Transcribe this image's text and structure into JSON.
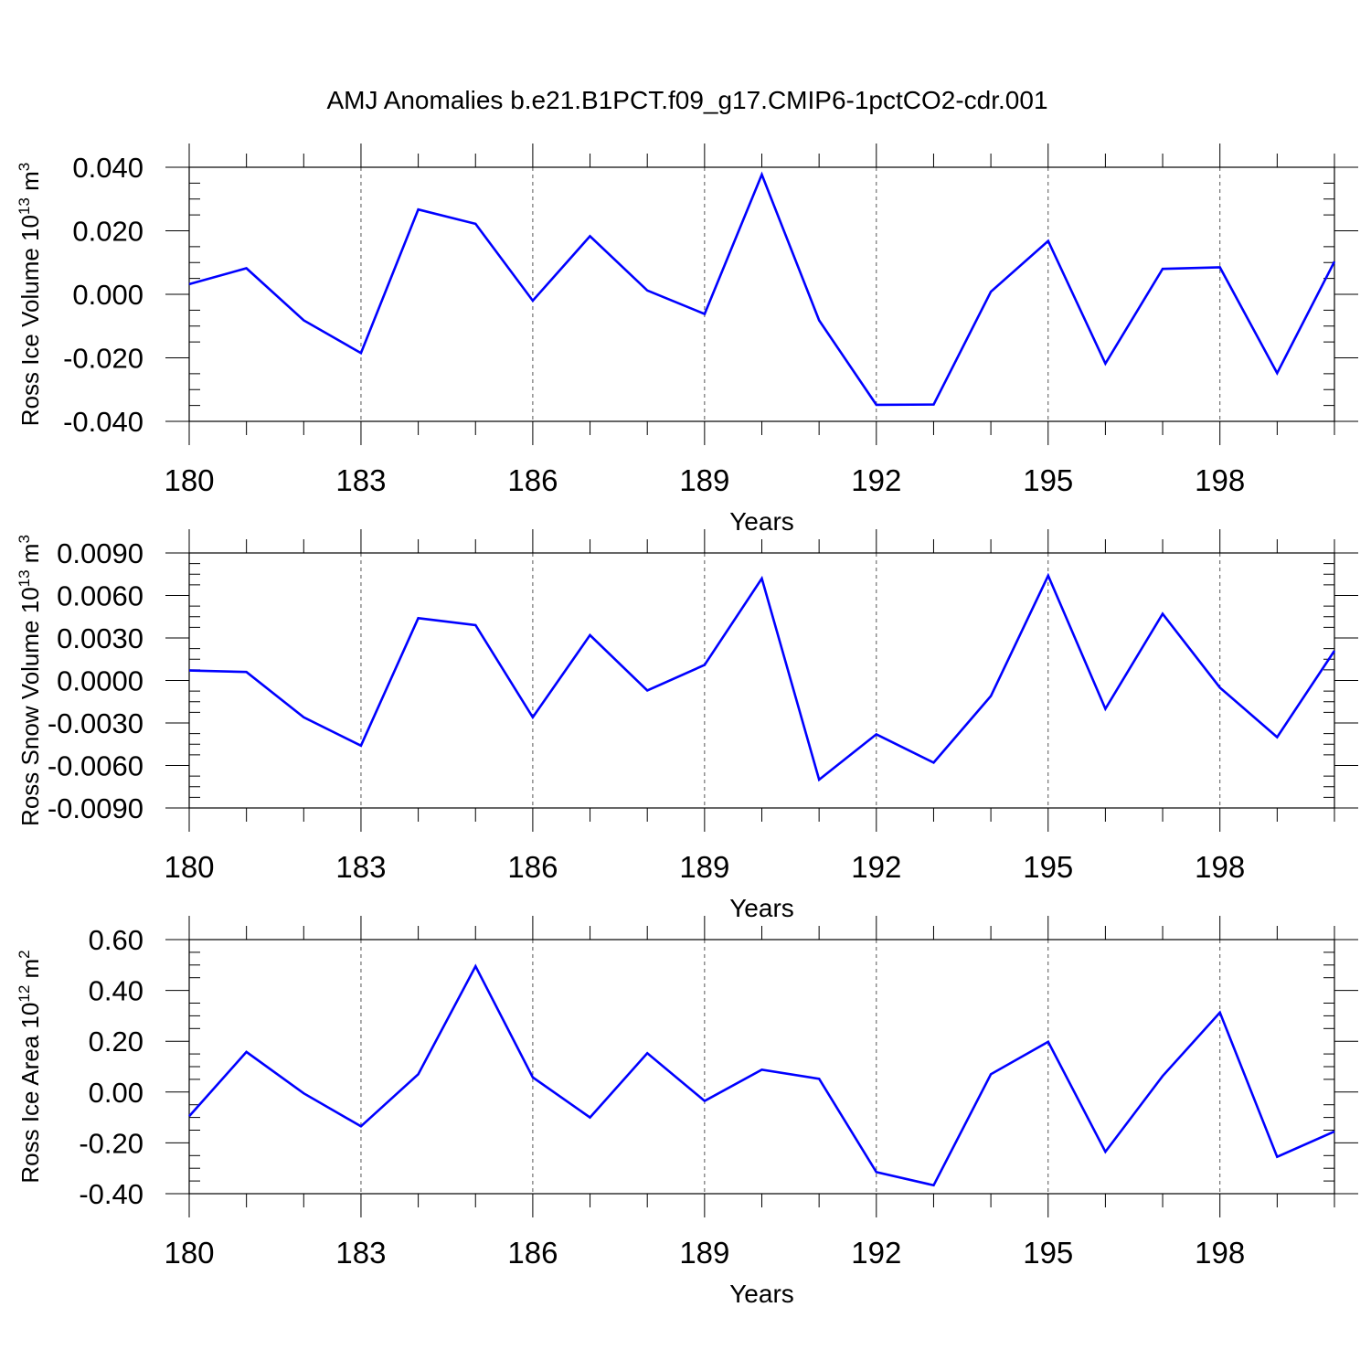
{
  "title": "AMJ Anomalies b.e21.B1PCT.f09_g17.CMIP6-1pctCO2-cdr.001",
  "line_color": "#0000ff",
  "chart_data": [
    {
      "type": "line",
      "xlabel": "Years",
      "ylabel": {
        "base": "Ross Ice Volume 10",
        "exp": "13",
        "unit": " m",
        "unit_exp": "3"
      },
      "xlim": [
        180,
        200
      ],
      "ylim": [
        -0.04,
        0.04
      ],
      "x_ticks": [
        180,
        183,
        186,
        189,
        192,
        195,
        198
      ],
      "y_ticks": [
        -0.04,
        -0.02,
        0.0,
        0.02,
        0.04
      ],
      "y_tick_labels": [
        "-0.040",
        "-0.020",
        "0.000",
        "0.020",
        "0.040"
      ],
      "grid": "dashed vertical lines at labelled years",
      "x": [
        180,
        181,
        182,
        183,
        184,
        185,
        186,
        187,
        188,
        189,
        190,
        191,
        192,
        193,
        194,
        195,
        196,
        197,
        198,
        199,
        200
      ],
      "values": [
        0.0032,
        0.0082,
        -0.0082,
        -0.0185,
        0.0267,
        0.0222,
        -0.002,
        0.0183,
        0.0012,
        -0.0062,
        0.0377,
        -0.0082,
        -0.0348,
        -0.0347,
        0.0008,
        0.0168,
        -0.0218,
        0.008,
        0.0085,
        -0.0248,
        0.0103
      ]
    },
    {
      "type": "line",
      "xlabel": "Years",
      "ylabel": {
        "base": "Ross Snow Volume 10",
        "exp": "13",
        "unit": " m",
        "unit_exp": "3"
      },
      "xlim": [
        180,
        200
      ],
      "ylim": [
        -0.009,
        0.009
      ],
      "x_ticks": [
        180,
        183,
        186,
        189,
        192,
        195,
        198
      ],
      "y_ticks": [
        -0.009,
        -0.006,
        -0.003,
        0.0,
        0.003,
        0.006,
        0.009
      ],
      "y_tick_labels": [
        "-0.0090",
        "-0.0060",
        "-0.0030",
        "0.0000",
        "0.0030",
        "0.0060",
        "0.0090"
      ],
      "grid": "dashed vertical lines at labelled years",
      "x": [
        180,
        181,
        182,
        183,
        184,
        185,
        186,
        187,
        188,
        189,
        190,
        191,
        192,
        193,
        194,
        195,
        196,
        197,
        198,
        199,
        200
      ],
      "values": [
        0.0007,
        0.0006,
        -0.0026,
        -0.0046,
        0.0044,
        0.0039,
        -0.0026,
        0.0032,
        -0.0007,
        0.0011,
        0.0072,
        -0.007,
        -0.0038,
        -0.0058,
        -0.0011,
        0.0074,
        -0.002,
        0.0047,
        -0.0005,
        -0.004,
        0.0021
      ]
    },
    {
      "type": "line",
      "xlabel": "Years",
      "ylabel": {
        "base": "Ross Ice Area 10",
        "exp": "12",
        "unit": " m",
        "unit_exp": "2"
      },
      "xlim": [
        180,
        200
      ],
      "ylim": [
        -0.4,
        0.6
      ],
      "x_ticks": [
        180,
        183,
        186,
        189,
        192,
        195,
        198
      ],
      "y_ticks": [
        -0.4,
        -0.2,
        0.0,
        0.2,
        0.4,
        0.6
      ],
      "y_tick_labels": [
        "-0.40",
        "-0.20",
        "0.00",
        "0.20",
        "0.40",
        "0.60"
      ],
      "grid": "dashed vertical lines at labelled years",
      "x": [
        180,
        181,
        182,
        183,
        184,
        185,
        186,
        187,
        188,
        189,
        190,
        191,
        192,
        193,
        194,
        195,
        196,
        197,
        198,
        199,
        200
      ],
      "values": [
        -0.095,
        0.158,
        -0.005,
        -0.135,
        0.07,
        0.495,
        0.058,
        -0.1,
        0.153,
        -0.035,
        0.088,
        0.052,
        -0.315,
        -0.367,
        0.07,
        0.198,
        -0.235,
        0.063,
        0.313,
        -0.255,
        -0.155
      ]
    }
  ]
}
